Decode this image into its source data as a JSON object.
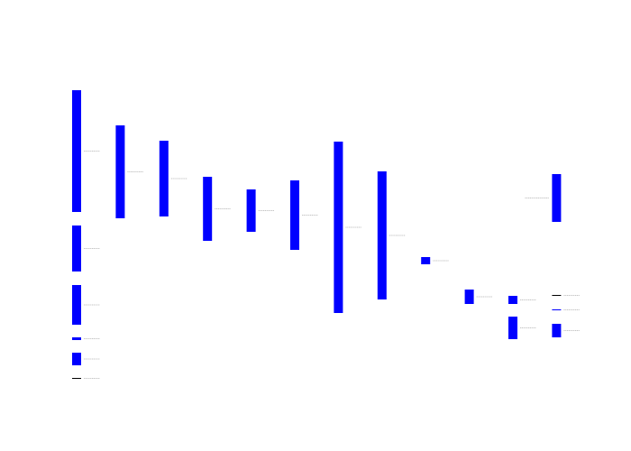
{
  "chart_data": {
    "type": "bar",
    "subtype": "timeline-gantt",
    "colors": {
      "bar": "#0000ff",
      "mark": "#000000",
      "label": "#b3b3b3",
      "background": "#ffffff"
    },
    "grid": false,
    "legend": "none",
    "bars": [
      {
        "column": 1,
        "start": 100,
        "end": 235,
        "color": "#0000ff",
        "label": ""
      },
      {
        "column": 1,
        "start": 250,
        "end": 301,
        "color": "#0000ff",
        "label": ""
      },
      {
        "column": 1,
        "start": 316,
        "end": 360,
        "color": "#0000ff",
        "label": ""
      },
      {
        "column": 1,
        "start": 374,
        "end": 377,
        "color": "#0000ff",
        "label": ""
      },
      {
        "column": 1,
        "start": 391,
        "end": 405,
        "color": "#0000ff",
        "label": ""
      },
      {
        "column": 1,
        "start": 419,
        "end": 420,
        "color": "#000000",
        "label": ""
      },
      {
        "column": 2,
        "start": 139,
        "end": 242,
        "color": "#0000ff",
        "label": ""
      },
      {
        "column": 3,
        "start": 156,
        "end": 240,
        "color": "#0000ff",
        "label": ""
      },
      {
        "column": 4,
        "start": 196,
        "end": 267,
        "color": "#0000ff",
        "label": ""
      },
      {
        "column": 5,
        "start": 210,
        "end": 257,
        "color": "#0000ff",
        "label": ""
      },
      {
        "column": 6,
        "start": 200,
        "end": 277,
        "color": "#0000ff",
        "label": ""
      },
      {
        "column": 7,
        "start": 157,
        "end": 347,
        "color": "#0000ff",
        "label": ""
      },
      {
        "column": 8,
        "start": 190,
        "end": 332,
        "color": "#0000ff",
        "label": ""
      },
      {
        "column": 9,
        "start": 285,
        "end": 293,
        "color": "#0000ff",
        "label": ""
      },
      {
        "column": 10,
        "start": 321,
        "end": 337,
        "color": "#0000ff",
        "label": ""
      },
      {
        "column": 11,
        "start": 328,
        "end": 337,
        "color": "#0000ff",
        "label": ""
      },
      {
        "column": 11,
        "start": 351,
        "end": 376,
        "color": "#0000ff",
        "label": ""
      },
      {
        "column": 12,
        "start": 193,
        "end": 246,
        "color": "#0000ff",
        "label": ""
      },
      {
        "column": 12,
        "start": 327,
        "end": 328,
        "color": "#000000",
        "label": ""
      },
      {
        "column": 12,
        "start": 343,
        "end": 344,
        "color": "#0000ff",
        "label": ""
      },
      {
        "column": 12,
        "start": 359,
        "end": 374,
        "color": "#0000ff",
        "label": ""
      }
    ]
  }
}
